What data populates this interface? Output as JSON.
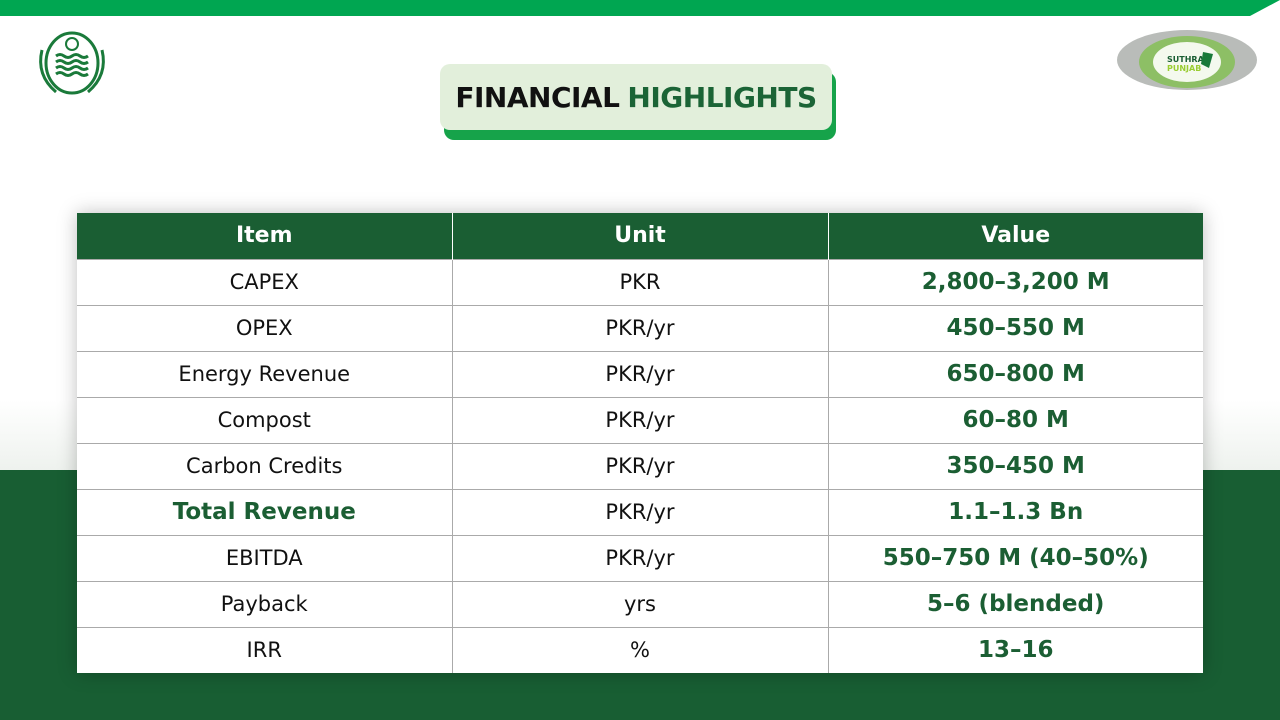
{
  "title": {
    "part1": "FINANCIAL",
    "part2": "HIGHLIGHTS"
  },
  "logos": {
    "left": "Government of Punjab emblem",
    "right": "SUTHRA PUNJAB"
  },
  "colors": {
    "accent": "#00a651",
    "dark_green": "#1a5e33",
    "title_bg": "#e2efdb"
  },
  "table": {
    "headers": [
      "Item",
      "Unit",
      "Value"
    ],
    "rows": [
      {
        "item": "CAPEX",
        "unit": "PKR",
        "value": "2,800–3,200 M"
      },
      {
        "item": "OPEX",
        "unit": "PKR/yr",
        "value": "450–550 M"
      },
      {
        "item": "Energy Revenue",
        "unit": "PKR/yr",
        "value": "650–800 M"
      },
      {
        "item": "Compost",
        "unit": "PKR/yr",
        "value": "60–80 M"
      },
      {
        "item": "Carbon Credits",
        "unit": "PKR/yr",
        "value": "350–450 M"
      },
      {
        "item": "Total Revenue",
        "unit": "PKR/yr",
        "value": "1.1–1.3 Bn",
        "highlight": true
      },
      {
        "item": "EBITDA",
        "unit": "PKR/yr",
        "value": "550–750 M (40–50%)"
      },
      {
        "item": "Payback",
        "unit": "yrs",
        "value": "5–6 (blended)"
      },
      {
        "item": "IRR",
        "unit": "%",
        "value": "13–16"
      }
    ]
  }
}
